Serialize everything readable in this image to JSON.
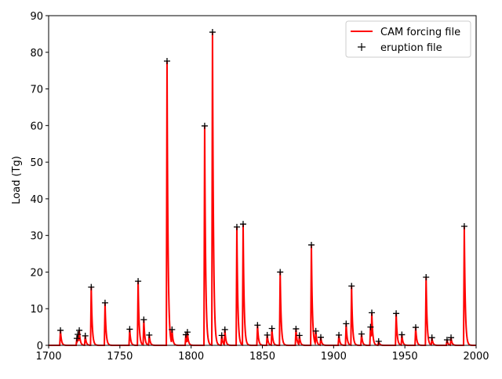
{
  "chart_data": {
    "type": "line",
    "title": "",
    "xlabel": "",
    "ylabel": "Load (Tg)",
    "xlim": [
      1700,
      2000
    ],
    "ylim": [
      0,
      90
    ],
    "xticks": [
      1700,
      1750,
      1800,
      1850,
      1900,
      1950,
      2000
    ],
    "yticks": [
      0,
      10,
      20,
      30,
      40,
      50,
      60,
      70,
      80,
      90
    ],
    "grid": false,
    "legend_position": "top-right",
    "series": [
      {
        "name": "CAM forcing file",
        "kind": "line",
        "color": "#ff0000"
      },
      {
        "name": "eruption file",
        "kind": "marker",
        "marker": "+",
        "color": "#000000",
        "points": [
          [
            1708.3,
            4.1
          ],
          [
            1719.8,
            1.9
          ],
          [
            1720.5,
            3.0
          ],
          [
            1721.5,
            4.1
          ],
          [
            1725.7,
            2.6
          ],
          [
            1729.9,
            15.9
          ],
          [
            1739.6,
            11.6
          ],
          [
            1756.9,
            4.4
          ],
          [
            1762.8,
            17.5
          ],
          [
            1766.8,
            7.0
          ],
          [
            1770.6,
            2.8
          ],
          [
            1783.1,
            77.6
          ],
          [
            1786.6,
            4.3
          ],
          [
            1796.3,
            2.9
          ],
          [
            1797.4,
            3.6
          ],
          [
            1809.5,
            59.9
          ],
          [
            1815.0,
            85.5
          ],
          [
            1821.5,
            2.7
          ],
          [
            1823.7,
            4.3
          ],
          [
            1832.1,
            32.3
          ],
          [
            1836.5,
            33.1
          ],
          [
            1846.6,
            5.5
          ],
          [
            1853.4,
            2.8
          ],
          [
            1856.7,
            4.6
          ],
          [
            1862.5,
            20.0
          ],
          [
            1873.6,
            4.5
          ],
          [
            1876.0,
            2.7
          ],
          [
            1884.4,
            27.4
          ],
          [
            1887.5,
            3.9
          ],
          [
            1891.0,
            2.2
          ],
          [
            1903.7,
            2.8
          ],
          [
            1908.8,
            5.9
          ],
          [
            1912.6,
            16.2
          ],
          [
            1919.6,
            3.1
          ],
          [
            1925.9,
            5.0
          ],
          [
            1926.8,
            8.9
          ],
          [
            1931.6,
            1.1
          ],
          [
            1943.9,
            8.7
          ],
          [
            1947.9,
            2.9
          ],
          [
            1957.6,
            4.9
          ],
          [
            1964.9,
            18.6
          ],
          [
            1969.0,
            2.1
          ],
          [
            1979.6,
            1.5
          ],
          [
            1982.4,
            2.1
          ],
          [
            1991.7,
            32.5
          ]
        ]
      }
    ]
  }
}
